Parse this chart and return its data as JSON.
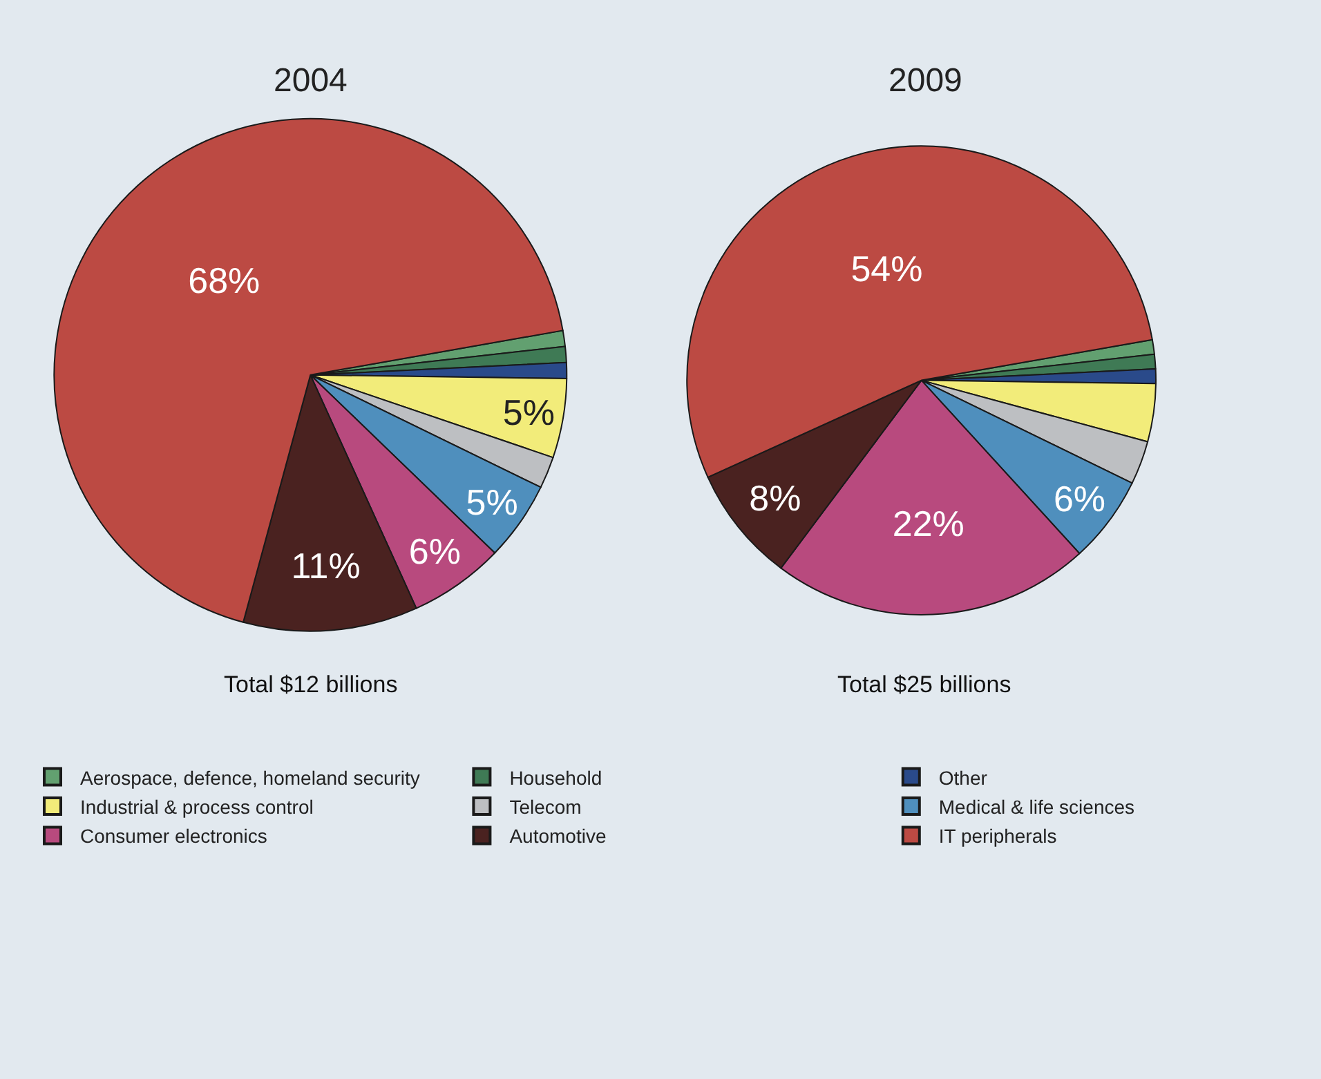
{
  "chart_data": {
    "type": "pie",
    "categories": [
      "Aerospace, defence, homeland security",
      "Household",
      "Other",
      "Industrial & process control",
      "Telecom",
      "Medical & life sciences",
      "Consumer electronics",
      "Automotive",
      "IT peripherals"
    ],
    "colors": [
      "#62a070",
      "#3f7a55",
      "#2a4a8a",
      "#f2ec7a",
      "#bdbfc2",
      "#4f8fbd",
      "#b84a7e",
      "#4a2220",
      "#bc4a43"
    ],
    "series": [
      {
        "name": "2004",
        "values": [
          1,
          1,
          1,
          5,
          2,
          5,
          6,
          11,
          68
        ],
        "value_labels": [
          null,
          null,
          null,
          "5%",
          null,
          "5%",
          "6%",
          "11%",
          "68%"
        ]
      },
      {
        "name": "2009",
        "values": [
          1,
          1,
          1,
          4,
          3,
          6,
          22,
          8,
          54
        ],
        "value_labels": [
          null,
          null,
          null,
          null,
          null,
          "6%",
          "22%",
          "8%",
          "54%"
        ]
      }
    ],
    "annotations": [
      "Total $12 billions",
      "Total $25 billions"
    ],
    "legend": "bottom"
  }
}
